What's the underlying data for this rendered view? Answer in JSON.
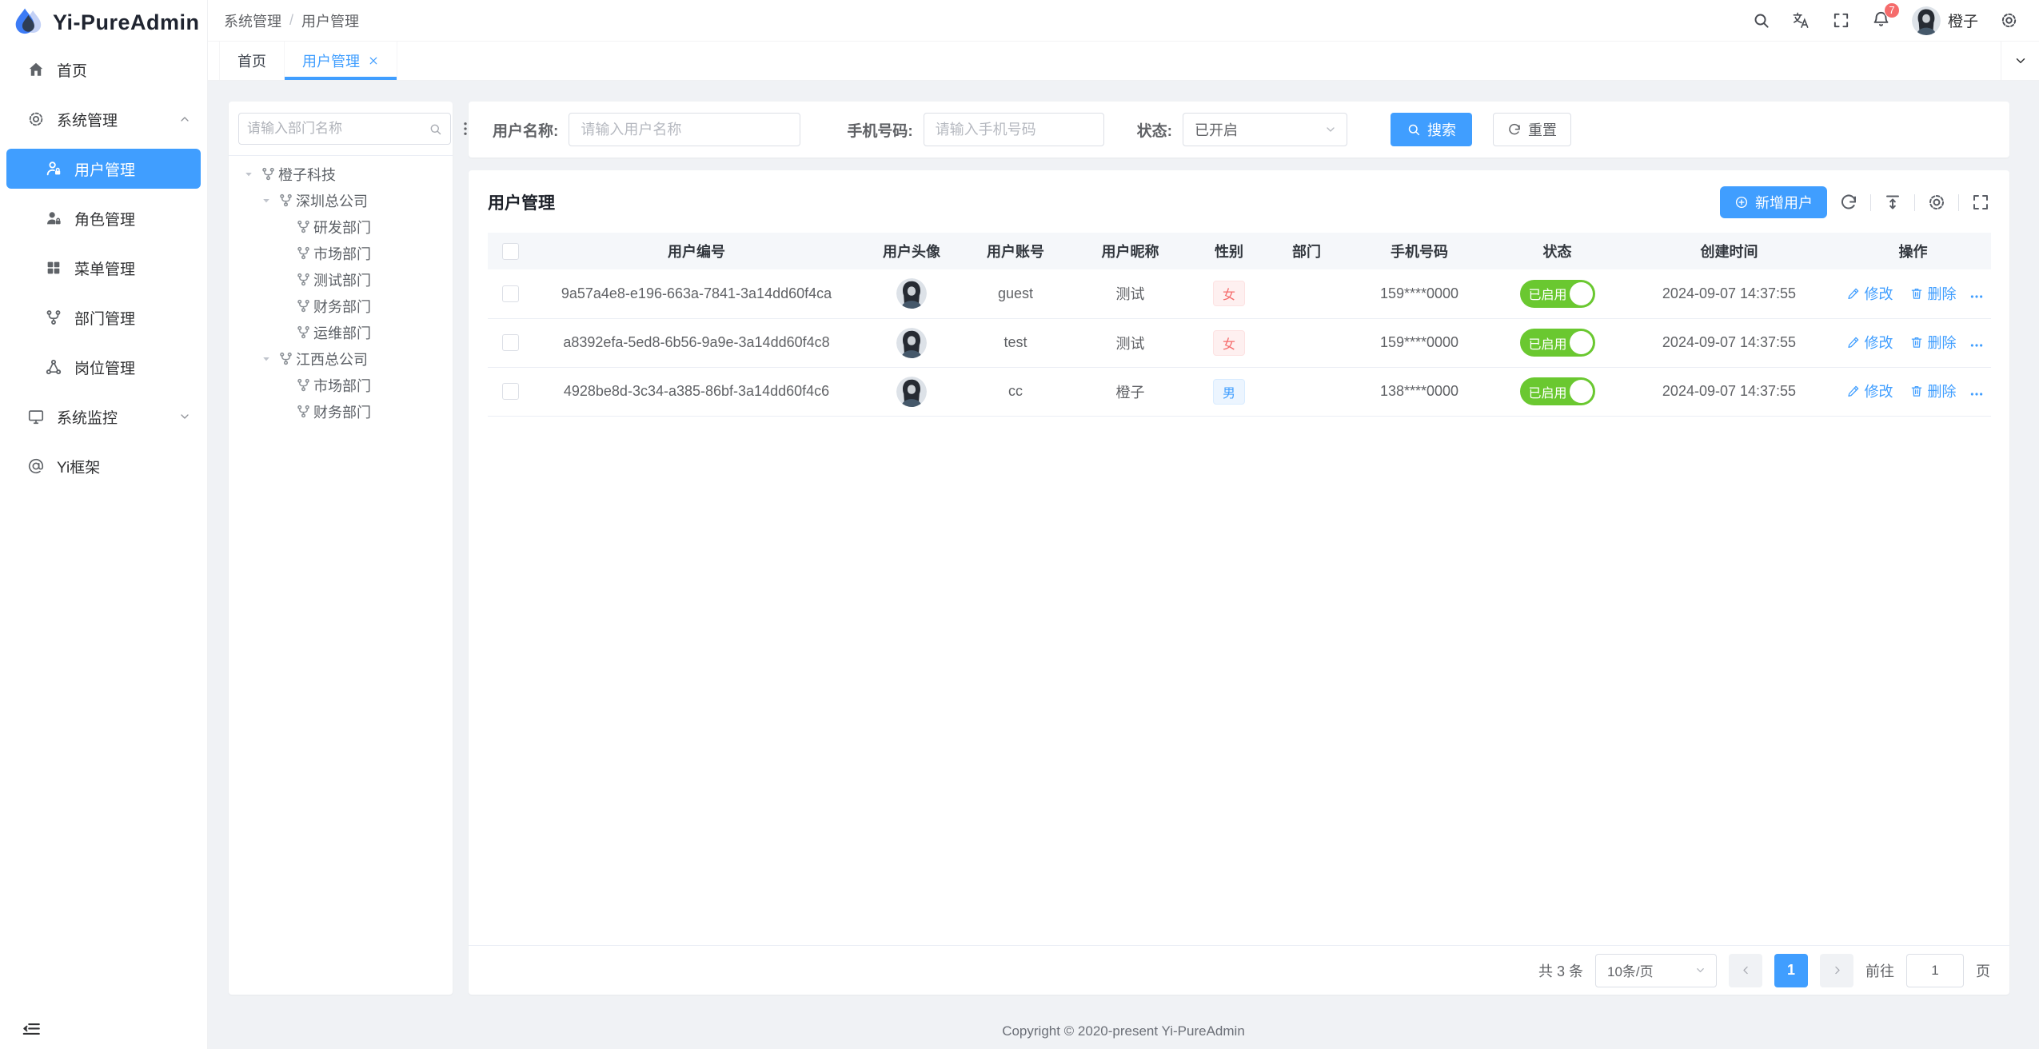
{
  "app": {
    "title": "Yi-PureAdmin",
    "copyright": "Copyright © 2020-present Yi-PureAdmin"
  },
  "header": {
    "breadcrumb": [
      "系统管理",
      "用户管理"
    ],
    "separator": "/",
    "username": "橙子",
    "notification_count": "7"
  },
  "tabs": [
    {
      "label": "首页",
      "active": false,
      "closable": false
    },
    {
      "label": "用户管理",
      "active": true,
      "closable": true
    }
  ],
  "sidebar": {
    "items": [
      {
        "icon": "home-icon",
        "label": "首页",
        "type": "root"
      },
      {
        "icon": "gear-icon",
        "label": "系统管理",
        "type": "root",
        "chevron": "up"
      },
      {
        "icon": "user-icon",
        "label": "用户管理",
        "type": "sub",
        "active": true
      },
      {
        "icon": "role-icon",
        "label": "角色管理",
        "type": "sub"
      },
      {
        "icon": "menu-grid-icon",
        "label": "菜单管理",
        "type": "sub"
      },
      {
        "icon": "dept-icon",
        "label": "部门管理",
        "type": "sub"
      },
      {
        "icon": "post-icon",
        "label": "岗位管理",
        "type": "sub"
      },
      {
        "icon": "monitor-icon",
        "label": "系统监控",
        "type": "root",
        "chevron": "down"
      },
      {
        "icon": "at-icon",
        "label": "Yi框架",
        "type": "root"
      }
    ]
  },
  "tree": {
    "search_placeholder": "请输入部门名称",
    "nodes": [
      {
        "label": "橙子科技",
        "level": 0,
        "expanded": true
      },
      {
        "label": "深圳总公司",
        "level": 1,
        "expanded": true
      },
      {
        "label": "研发部门",
        "level": 2
      },
      {
        "label": "市场部门",
        "level": 2
      },
      {
        "label": "测试部门",
        "level": 2
      },
      {
        "label": "财务部门",
        "level": 2
      },
      {
        "label": "运维部门",
        "level": 2
      },
      {
        "label": "江西总公司",
        "level": 1,
        "expanded": true
      },
      {
        "label": "市场部门",
        "level": 2
      },
      {
        "label": "财务部门",
        "level": 2
      }
    ]
  },
  "filters": {
    "name_label": "用户名称:",
    "name_placeholder": "请输入用户名称",
    "phone_label": "手机号码:",
    "phone_placeholder": "请输入手机号码",
    "status_label": "状态:",
    "status_value": "已开启",
    "search_label": "搜索",
    "reset_label": "重置"
  },
  "table": {
    "title": "用户管理",
    "add_label": "新增用户",
    "columns": [
      "用户编号",
      "用户头像",
      "用户账号",
      "用户昵称",
      "性别",
      "部门",
      "手机号码",
      "状态",
      "创建时间",
      "操作"
    ],
    "actions": {
      "edit": "修改",
      "delete": "删除"
    },
    "rows": [
      {
        "id": "9a57a4e8-e196-663a-7841-3a14dd60f4ca",
        "account": "guest",
        "nickname": "测试",
        "gender": "女",
        "gender_type": "female",
        "dept": "",
        "phone": "159****0000",
        "status": "已启用",
        "status_on": true,
        "created": "2024-09-07 14:37:55"
      },
      {
        "id": "a8392efa-5ed8-6b56-9a9e-3a14dd60f4c8",
        "account": "test",
        "nickname": "测试",
        "gender": "女",
        "gender_type": "female",
        "dept": "",
        "phone": "159****0000",
        "status": "已启用",
        "status_on": true,
        "created": "2024-09-07 14:37:55"
      },
      {
        "id": "4928be8d-3c34-a385-86bf-3a14dd60f4c6",
        "account": "cc",
        "nickname": "橙子",
        "gender": "男",
        "gender_type": "male",
        "dept": "",
        "phone": "138****0000",
        "status": "已启用",
        "status_on": true,
        "created": "2024-09-07 14:37:55"
      }
    ]
  },
  "pagination": {
    "total_text": "共 3 条",
    "page_size": "10条/页",
    "current_page": "1",
    "goto_label": "前往",
    "goto_value": "1",
    "page_label": "页"
  },
  "colors": {
    "primary": "#409eff",
    "success": "#6ac830",
    "danger": "#f56c6c",
    "background": "#f0f2f5"
  }
}
